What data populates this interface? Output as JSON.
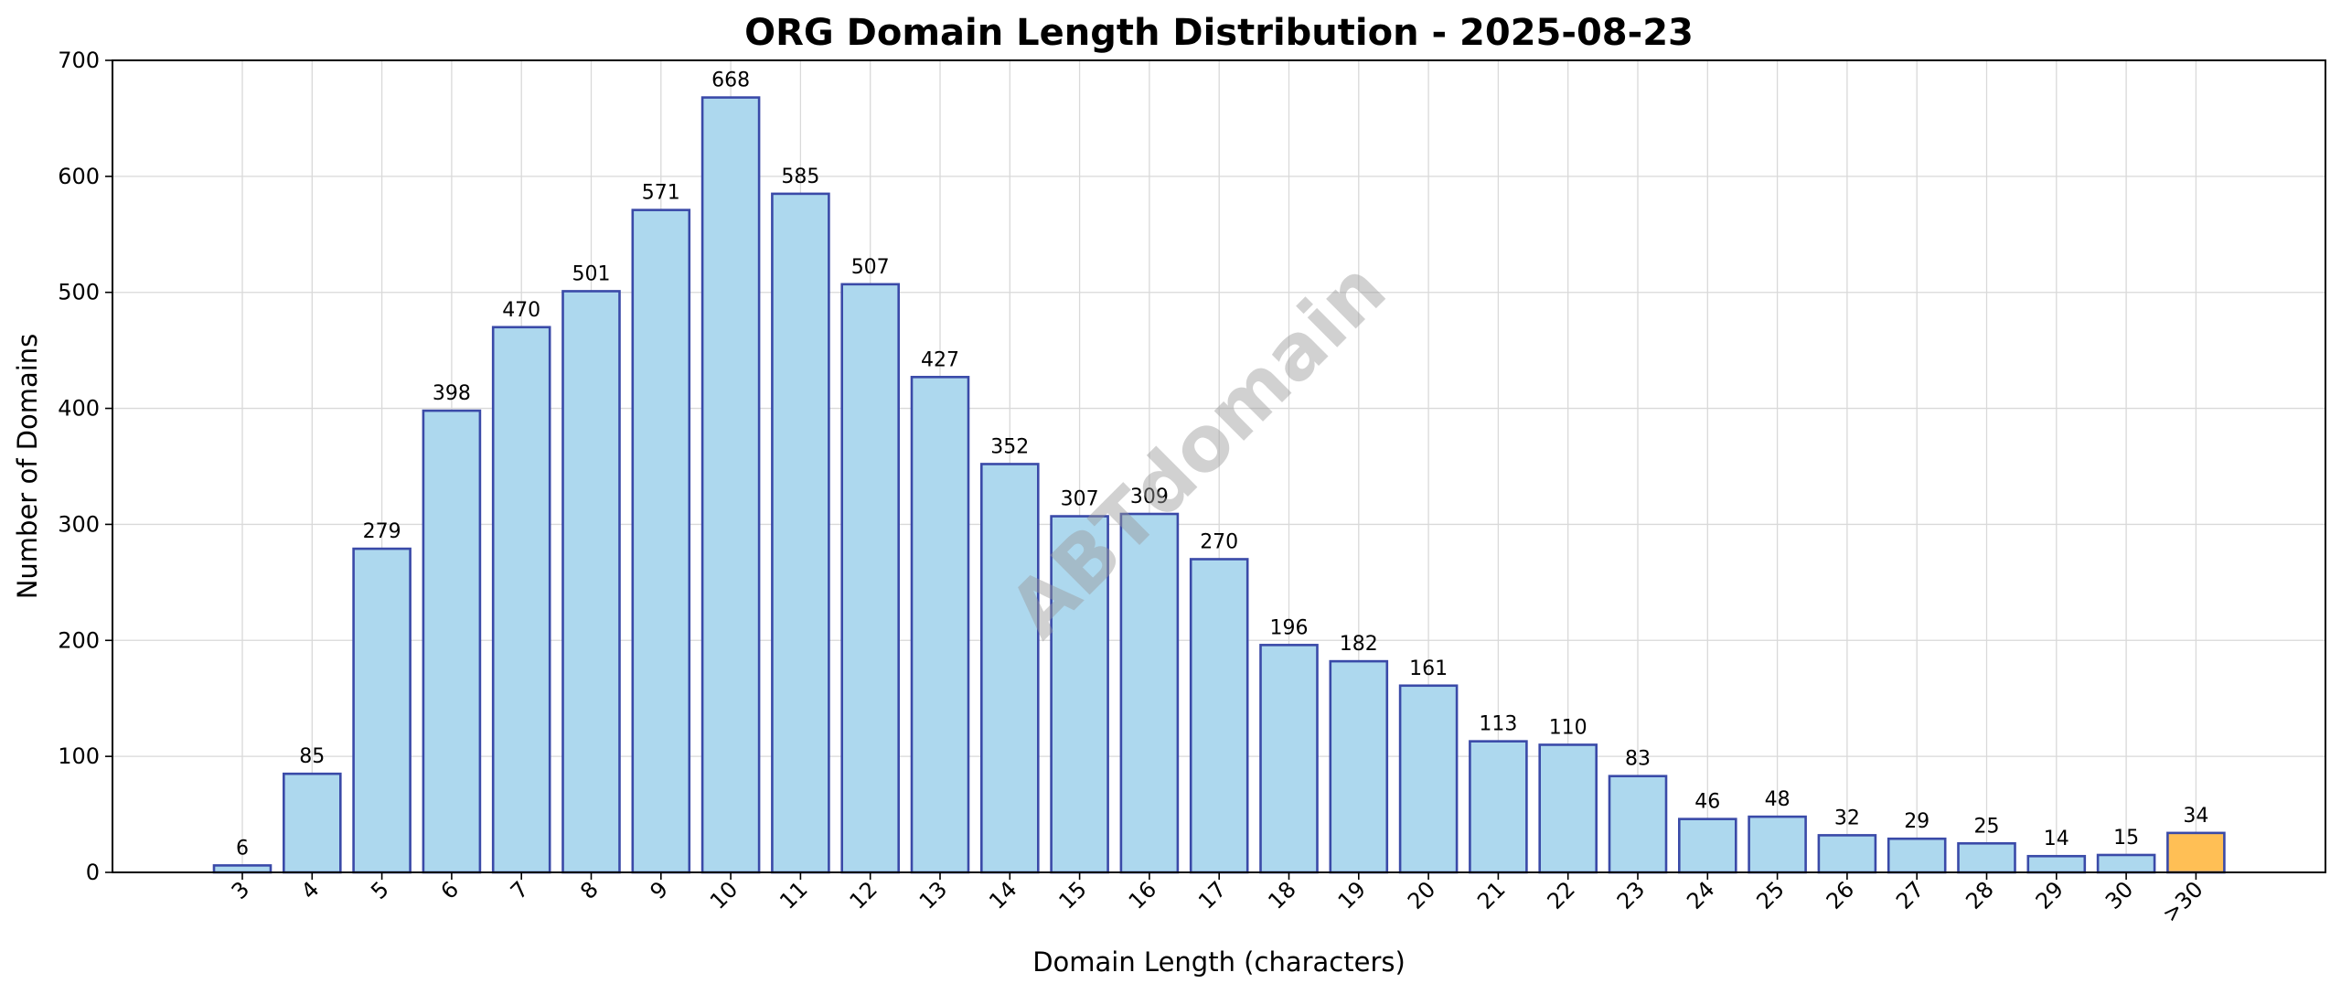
{
  "chart_data": {
    "type": "bar",
    "title": "ORG Domain Length Distribution - 2025-08-23",
    "xlabel": "Domain Length (characters)",
    "ylabel": "Number of Domains",
    "categories": [
      "3",
      "4",
      "5",
      "6",
      "7",
      "8",
      "9",
      "10",
      "11",
      "12",
      "13",
      "14",
      "15",
      "16",
      "17",
      "18",
      "19",
      "20",
      "21",
      "22",
      "23",
      "24",
      "25",
      "26",
      "27",
      "28",
      "29",
      "30",
      ">30"
    ],
    "values": [
      6,
      85,
      279,
      398,
      470,
      501,
      571,
      668,
      585,
      507,
      427,
      352,
      307,
      309,
      270,
      196,
      182,
      161,
      113,
      110,
      83,
      46,
      48,
      32,
      29,
      25,
      14,
      15,
      34
    ],
    "ylim": [
      0,
      700
    ],
    "yticks": [
      0,
      100,
      200,
      300,
      400,
      500,
      600,
      700
    ],
    "grid": true,
    "bar_color": "#add8ee",
    "bar_edge_color": "#3a4aa8",
    "highlight_category": ">30",
    "highlight_color": "#ffbf55",
    "watermark": "ABTdomain"
  }
}
